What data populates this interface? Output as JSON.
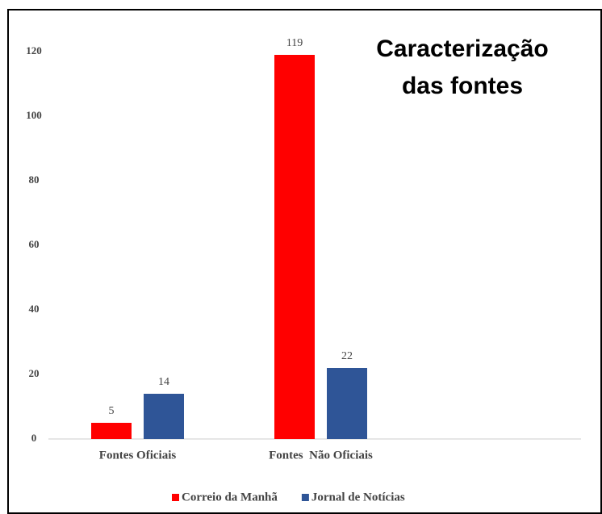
{
  "chart_data": {
    "type": "bar",
    "title": [
      "Caracterização",
      "das fontes"
    ],
    "categories": [
      "Fontes Oficiais",
      "Fontes  Não Oficiais"
    ],
    "series": [
      {
        "name": "Correio da Manhã",
        "color": "#ff0000",
        "values": [
          5,
          119
        ]
      },
      {
        "name": "Jornal de Notícias",
        "color": "#2f5597",
        "values": [
          14,
          22
        ]
      }
    ],
    "ylim": [
      0,
      120
    ],
    "yticks": [
      0,
      20,
      40,
      60,
      80,
      100,
      120
    ],
    "grid": false,
    "legend": "bottom"
  }
}
